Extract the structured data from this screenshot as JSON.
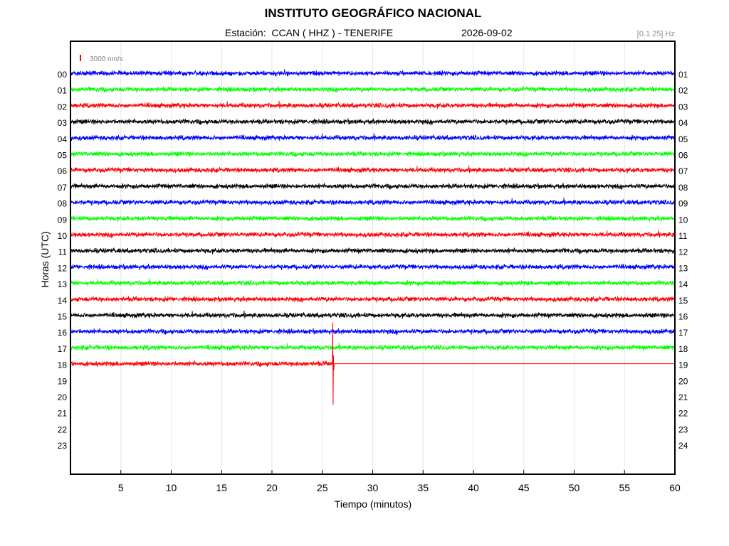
{
  "title": "INSTITUTO GEOGRÁFICO NACIONAL",
  "station_line": "Estación:  CCAN ( HHZ ) - TENERIFE",
  "date": "2026-09-02",
  "filter_band": "[0.1 25] Hz",
  "chart_data": {
    "type": "line",
    "title": "INSTITUTO GEOGRÁFICO NACIONAL",
    "xlabel": "Tiempo (minutos)",
    "ylabel": "Horas (UTC)",
    "xlim": [
      0,
      60
    ],
    "x_ticks": [
      5,
      10,
      15,
      20,
      25,
      30,
      35,
      40,
      45,
      50,
      55,
      60
    ],
    "grid": true,
    "scale_bar": "3000 nm/s",
    "left_hour_labels": [
      "00",
      "01",
      "02",
      "03",
      "04",
      "05",
      "06",
      "07",
      "08",
      "09",
      "10",
      "11",
      "12",
      "13",
      "14",
      "15",
      "16",
      "17",
      "18",
      "19",
      "20",
      "21",
      "22",
      "23"
    ],
    "right_hour_labels": [
      "01",
      "02",
      "03",
      "04",
      "05",
      "06",
      "07",
      "08",
      "09",
      "10",
      "11",
      "12",
      "13",
      "14",
      "15",
      "16",
      "17",
      "18",
      "19",
      "20",
      "21",
      "22",
      "23",
      "24"
    ],
    "trace_colors": [
      "#0000ff",
      "#00ff00",
      "#ff0000",
      "#000000"
    ],
    "hours_recorded": 19,
    "last_hour_data_end_min": 26,
    "event": {
      "hour": 18,
      "minute": 26,
      "description": "large spike"
    }
  }
}
